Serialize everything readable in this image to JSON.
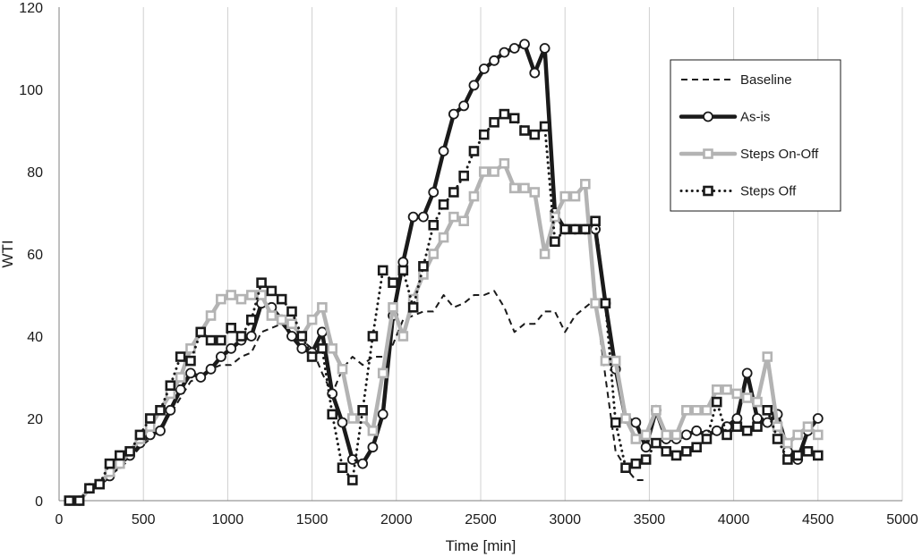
{
  "chart_data": {
    "type": "line",
    "title": "",
    "xlabel": "Time [min]",
    "ylabel": "WTI",
    "xlim": [
      0,
      5000
    ],
    "ylim": [
      0,
      120
    ],
    "xticks": [
      0,
      500,
      1000,
      1500,
      2000,
      2500,
      3000,
      3500,
      4000,
      4500,
      5000
    ],
    "yticks": [
      0,
      20,
      40,
      60,
      80,
      100,
      120
    ],
    "grid": "vertical",
    "legend_position": "top-right",
    "series": [
      {
        "name": "Baseline",
        "style": "dashed",
        "color": "#1a1a1a",
        "marker": "none",
        "x": [
          60,
          120,
          180,
          240,
          300,
          360,
          420,
          480,
          540,
          600,
          660,
          720,
          780,
          840,
          900,
          960,
          1020,
          1080,
          1140,
          1200,
          1260,
          1320,
          1380,
          1440,
          1500,
          1560,
          1620,
          1680,
          1740,
          1800,
          1860,
          1920,
          1980,
          2040,
          2100,
          2160,
          2220,
          2280,
          2340,
          2400,
          2460,
          2520,
          2580,
          2640,
          2700,
          2760,
          2820,
          2880,
          2940,
          3000,
          3060,
          3120,
          3180,
          3240,
          3300,
          3360,
          3420,
          3480
        ],
        "y": [
          0,
          0,
          3,
          4,
          6,
          8,
          10,
          13,
          15,
          18,
          21,
          25,
          29,
          30,
          32,
          33,
          33,
          35,
          36,
          41,
          42,
          43,
          40,
          39,
          37,
          31,
          26,
          32,
          35,
          33,
          35,
          35,
          38,
          44,
          45,
          46,
          46,
          50,
          47,
          48,
          50,
          50,
          51,
          47,
          41,
          43,
          43,
          46,
          46,
          41,
          45,
          47,
          49,
          30,
          12,
          8,
          5,
          5
        ]
      },
      {
        "name": "As-is",
        "style": "solid-thick",
        "color": "#1a1a1a",
        "marker": "circle",
        "x": [
          60,
          120,
          180,
          240,
          300,
          360,
          420,
          480,
          540,
          600,
          660,
          720,
          780,
          840,
          900,
          960,
          1020,
          1080,
          1140,
          1200,
          1260,
          1320,
          1380,
          1440,
          1500,
          1560,
          1620,
          1680,
          1740,
          1800,
          1860,
          1920,
          1980,
          2040,
          2100,
          2160,
          2220,
          2280,
          2340,
          2400,
          2460,
          2520,
          2580,
          2640,
          2700,
          2760,
          2820,
          2880,
          2940,
          3000,
          3060,
          3120,
          3180,
          3240,
          3300,
          3360,
          3420,
          3480,
          3540,
          3600,
          3660,
          3720,
          3780,
          3840,
          3900,
          3960,
          4020,
          4080,
          4140,
          4200,
          4260,
          4320,
          4380,
          4440,
          4500
        ],
        "y": [
          0,
          0,
          3,
          4,
          6,
          9,
          11,
          14,
          16,
          17,
          22,
          27,
          31,
          30,
          32,
          35,
          37,
          39,
          40,
          48,
          47,
          44,
          40,
          37,
          36,
          41,
          26,
          19,
          10,
          9,
          13,
          21,
          45,
          58,
          69,
          69,
          75,
          85,
          94,
          96,
          101,
          105,
          107,
          109,
          110,
          111,
          104,
          110,
          70,
          66,
          66,
          66,
          66,
          48,
          32,
          20,
          19,
          13,
          22,
          15,
          15,
          16,
          17,
          16,
          17,
          18,
          20,
          31,
          20,
          19,
          21,
          12,
          10,
          17,
          20
        ]
      },
      {
        "name": "Steps On-Off",
        "style": "solid-thick",
        "color": "#b3b3b3",
        "marker": "square",
        "x": [
          60,
          120,
          180,
          240,
          300,
          360,
          420,
          480,
          540,
          600,
          660,
          720,
          780,
          840,
          900,
          960,
          1020,
          1080,
          1140,
          1200,
          1260,
          1320,
          1380,
          1440,
          1500,
          1560,
          1620,
          1680,
          1740,
          1800,
          1860,
          1920,
          1980,
          2040,
          2100,
          2160,
          2220,
          2280,
          2340,
          2400,
          2460,
          2520,
          2580,
          2640,
          2700,
          2760,
          2820,
          2880,
          2940,
          3000,
          3060,
          3120,
          3180,
          3240,
          3300,
          3360,
          3420,
          3480,
          3540,
          3600,
          3660,
          3720,
          3780,
          3840,
          3900,
          3960,
          4020,
          4080,
          4140,
          4200,
          4260,
          4320,
          4380,
          4440,
          4500
        ],
        "y": [
          0,
          0,
          3,
          4,
          7,
          9,
          12,
          15,
          18,
          22,
          26,
          30,
          37,
          41,
          45,
          49,
          50,
          49,
          50,
          50,
          45,
          44,
          43,
          40,
          44,
          47,
          37,
          32,
          20,
          20,
          17,
          31,
          47,
          40,
          49,
          55,
          60,
          64,
          69,
          68,
          74,
          80,
          80,
          82,
          76,
          76,
          75,
          60,
          69,
          74,
          74,
          77,
          48,
          34,
          34,
          20,
          15,
          16,
          22,
          16,
          16,
          22,
          22,
          22,
          27,
          27,
          26,
          25,
          24,
          35,
          18,
          14,
          16,
          18,
          16
        ]
      },
      {
        "name": "Steps Off",
        "style": "dotted",
        "color": "#1a1a1a",
        "marker": "square",
        "x": [
          60,
          120,
          180,
          240,
          300,
          360,
          420,
          480,
          540,
          600,
          660,
          720,
          780,
          840,
          900,
          960,
          1020,
          1080,
          1140,
          1200,
          1260,
          1320,
          1380,
          1440,
          1500,
          1560,
          1620,
          1680,
          1740,
          1800,
          1860,
          1920,
          1980,
          2040,
          2100,
          2160,
          2220,
          2280,
          2340,
          2400,
          2460,
          2520,
          2580,
          2640,
          2700,
          2760,
          2820,
          2880,
          2940,
          3000,
          3060,
          3120,
          3180,
          3240,
          3300,
          3360,
          3420,
          3480,
          3540,
          3600,
          3660,
          3720,
          3780,
          3840,
          3900,
          3960,
          4020,
          4080,
          4140,
          4200,
          4260,
          4320,
          4380,
          4440,
          4500
        ],
        "y": [
          0,
          0,
          3,
          4,
          9,
          11,
          12,
          16,
          20,
          22,
          28,
          35,
          34,
          41,
          39,
          39,
          42,
          40,
          44,
          53,
          51,
          49,
          46,
          40,
          35,
          37,
          21,
          8,
          5,
          22,
          40,
          56,
          53,
          56,
          47,
          57,
          67,
          72,
          75,
          79,
          85,
          89,
          92,
          94,
          93,
          90,
          89,
          91,
          63,
          66,
          66,
          66,
          68,
          48,
          19,
          8,
          9,
          10,
          14,
          12,
          11,
          12,
          13,
          15,
          24,
          16,
          18,
          17,
          18,
          22,
          15,
          10,
          11,
          12,
          11
        ]
      }
    ]
  }
}
